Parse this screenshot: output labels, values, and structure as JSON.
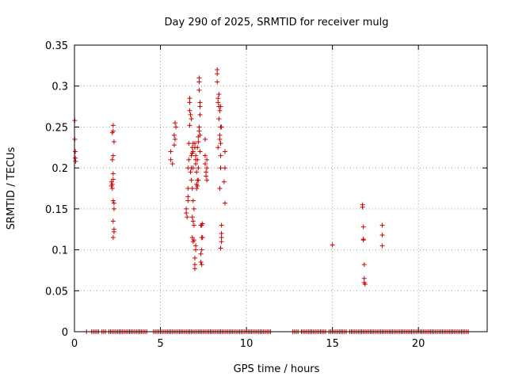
{
  "chart_data": {
    "type": "scatter",
    "title": "Day 290 of 2025, SRMTID for receiver mulg",
    "xlabel": "GPS time / hours",
    "ylabel": "SRMTID / TECUs",
    "xlim": [
      0,
      24
    ],
    "ylim": [
      0,
      0.35
    ],
    "xticks": [
      0,
      5,
      10,
      15,
      20
    ],
    "yticks": [
      0,
      0.05,
      0.1,
      0.15,
      0.2,
      0.25,
      0.3,
      0.35
    ],
    "xtick_labels": [
      "0",
      "5",
      "10",
      "15",
      "20"
    ],
    "ytick_labels": [
      "0",
      "0.05",
      "0.1",
      "0.15",
      "0.2",
      "0.25",
      "0.3",
      "0.35"
    ],
    "grid": true,
    "marker": "+",
    "marker_color": "#cc0000",
    "series": [
      {
        "name": "SRMTID",
        "points": [
          [
            0.02,
            0.258
          ],
          [
            0.02,
            0.235
          ],
          [
            0.05,
            0.22
          ],
          [
            0.05,
            0.212
          ],
          [
            0.07,
            0.208
          ],
          [
            2.15,
            0.183
          ],
          [
            2.15,
            0.178
          ],
          [
            2.2,
            0.175
          ],
          [
            2.2,
            0.18
          ],
          [
            2.25,
            0.186
          ],
          [
            2.25,
            0.193
          ],
          [
            2.2,
            0.21
          ],
          [
            2.25,
            0.215
          ],
          [
            2.2,
            0.243
          ],
          [
            2.25,
            0.245
          ],
          [
            2.25,
            0.252
          ],
          [
            2.3,
            0.232
          ],
          [
            2.25,
            0.16
          ],
          [
            2.3,
            0.157
          ],
          [
            2.3,
            0.15
          ],
          [
            2.25,
            0.135
          ],
          [
            2.3,
            0.125
          ],
          [
            2.3,
            0.122
          ],
          [
            2.25,
            0.115
          ],
          [
            5.6,
            0.22
          ],
          [
            5.6,
            0.21
          ],
          [
            5.7,
            0.205
          ],
          [
            5.8,
            0.24
          ],
          [
            5.85,
            0.235
          ],
          [
            5.85,
            0.255
          ],
          [
            5.9,
            0.25
          ],
          [
            5.8,
            0.228
          ],
          [
            6.5,
            0.15
          ],
          [
            6.5,
            0.145
          ],
          [
            6.55,
            0.14
          ],
          [
            6.6,
            0.16
          ],
          [
            6.6,
            0.165
          ],
          [
            6.6,
            0.175
          ],
          [
            6.6,
            0.2
          ],
          [
            6.65,
            0.21
          ],
          [
            6.65,
            0.23
          ],
          [
            6.7,
            0.252
          ],
          [
            6.7,
            0.27
          ],
          [
            6.7,
            0.28
          ],
          [
            6.7,
            0.285
          ],
          [
            6.75,
            0.265
          ],
          [
            6.8,
            0.26
          ],
          [
            6.75,
            0.195
          ],
          [
            6.8,
            0.2
          ],
          [
            6.8,
            0.185
          ],
          [
            6.8,
            0.215
          ],
          [
            6.85,
            0.225
          ],
          [
            6.85,
            0.218
          ],
          [
            6.9,
            0.2
          ],
          [
            6.9,
            0.23
          ],
          [
            6.9,
            0.22
          ],
          [
            6.85,
            0.175
          ],
          [
            6.9,
            0.16
          ],
          [
            6.85,
            0.14
          ],
          [
            6.9,
            0.135
          ],
          [
            6.95,
            0.13
          ],
          [
            6.85,
            0.115
          ],
          [
            6.9,
            0.11
          ],
          [
            6.95,
            0.112
          ],
          [
            7.0,
            0.09
          ],
          [
            7.0,
            0.082
          ],
          [
            7.0,
            0.077
          ],
          [
            7.05,
            0.1
          ],
          [
            7.05,
            0.105
          ],
          [
            6.95,
            0.15
          ],
          [
            7.0,
            0.23
          ],
          [
            7.0,
            0.225
          ],
          [
            7.05,
            0.215
          ],
          [
            7.05,
            0.21
          ],
          [
            7.05,
            0.205
          ],
          [
            7.1,
            0.195
          ],
          [
            7.1,
            0.18
          ],
          [
            7.1,
            0.175
          ],
          [
            7.15,
            0.178
          ],
          [
            7.15,
            0.185
          ],
          [
            7.15,
            0.21
          ],
          [
            7.15,
            0.225
          ],
          [
            7.2,
            0.232
          ],
          [
            7.2,
            0.238
          ],
          [
            7.2,
            0.2
          ],
          [
            7.2,
            0.185
          ],
          [
            7.25,
            0.31
          ],
          [
            7.25,
            0.305
          ],
          [
            7.25,
            0.295
          ],
          [
            7.3,
            0.28
          ],
          [
            7.3,
            0.275
          ],
          [
            7.3,
            0.265
          ],
          [
            7.25,
            0.25
          ],
          [
            7.25,
            0.245
          ],
          [
            7.3,
            0.22
          ],
          [
            7.3,
            0.24
          ],
          [
            7.35,
            0.13
          ],
          [
            7.4,
            0.13
          ],
          [
            7.4,
            0.115
          ],
          [
            7.4,
            0.1
          ],
          [
            7.35,
            0.095
          ],
          [
            7.35,
            0.085
          ],
          [
            7.4,
            0.082
          ],
          [
            7.45,
            0.115
          ],
          [
            7.45,
            0.132
          ],
          [
            7.6,
            0.235
          ],
          [
            7.6,
            0.215
          ],
          [
            7.6,
            0.205
          ],
          [
            7.65,
            0.195
          ],
          [
            7.65,
            0.19
          ],
          [
            7.7,
            0.21
          ],
          [
            7.7,
            0.2
          ],
          [
            7.7,
            0.185
          ],
          [
            8.3,
            0.32
          ],
          [
            8.3,
            0.315
          ],
          [
            8.3,
            0.305
          ],
          [
            8.35,
            0.285
          ],
          [
            8.35,
            0.28
          ],
          [
            8.4,
            0.275
          ],
          [
            8.4,
            0.26
          ],
          [
            8.45,
            0.27
          ],
          [
            8.45,
            0.24
          ],
          [
            8.45,
            0.235
          ],
          [
            8.5,
            0.25
          ],
          [
            8.5,
            0.23
          ],
          [
            8.5,
            0.215
          ],
          [
            8.35,
            0.225
          ],
          [
            8.4,
            0.29
          ],
          [
            8.5,
            0.275
          ],
          [
            8.55,
            0.25
          ],
          [
            8.5,
            0.2
          ],
          [
            8.45,
            0.175
          ],
          [
            8.55,
            0.13
          ],
          [
            8.55,
            0.12
          ],
          [
            8.55,
            0.115
          ],
          [
            8.55,
            0.11
          ],
          [
            8.5,
            0.102
          ],
          [
            8.75,
            0.22
          ],
          [
            8.75,
            0.2
          ],
          [
            8.7,
            0.183
          ],
          [
            8.75,
            0.157
          ],
          [
            15.0,
            0.106
          ],
          [
            16.75,
            0.155
          ],
          [
            16.75,
            0.152
          ],
          [
            16.8,
            0.128
          ],
          [
            16.8,
            0.113
          ],
          [
            16.8,
            0.112
          ],
          [
            16.85,
            0.082
          ],
          [
            16.85,
            0.065
          ],
          [
            16.85,
            0.06
          ],
          [
            16.9,
            0.058
          ],
          [
            17.9,
            0.13
          ],
          [
            17.9,
            0.118
          ],
          [
            17.9,
            0.105
          ]
        ],
        "zero_baseline_ranges": [
          [
            0.7,
            0.7
          ],
          [
            1.0,
            1.4
          ],
          [
            1.6,
            1.8
          ],
          [
            2.0,
            4.2
          ],
          [
            4.6,
            6.8
          ],
          [
            6.9,
            7.4
          ],
          [
            7.5,
            7.9
          ],
          [
            8.0,
            8.7
          ],
          [
            8.8,
            11.4
          ],
          [
            12.7,
            13.0
          ],
          [
            13.2,
            14.6
          ],
          [
            14.8,
            15.8
          ],
          [
            16.0,
            22.9
          ]
        ]
      }
    ]
  }
}
